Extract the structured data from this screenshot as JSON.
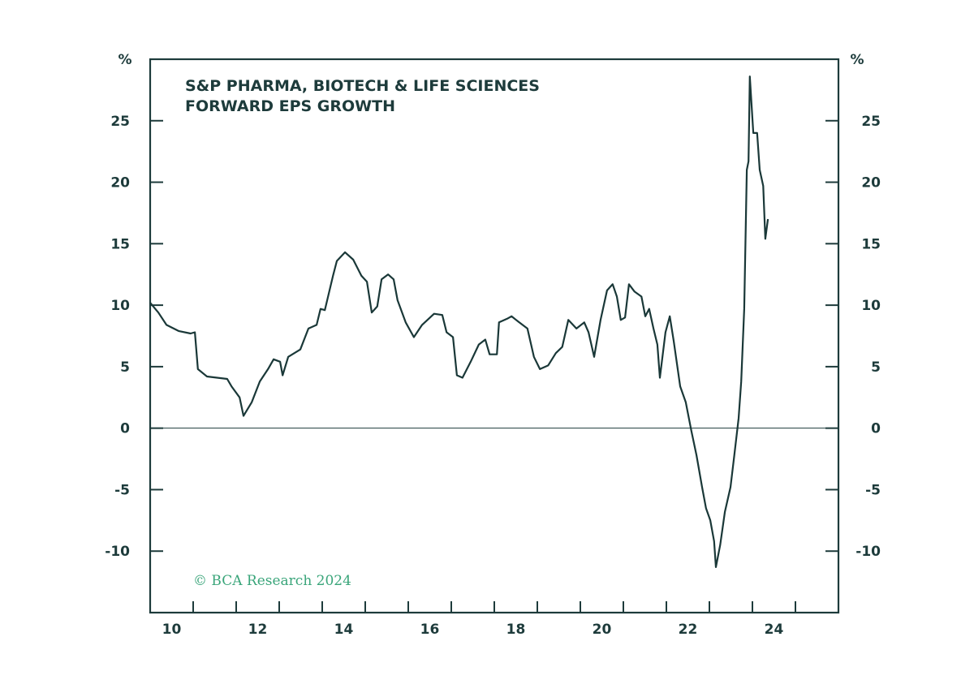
{
  "chart_data": {
    "type": "line",
    "title": [
      "S&P PHARMA, BIOTECH & LIFE SCIENCES",
      "FORWARD EPS GROWTH"
    ],
    "ylabel_left": "%",
    "ylabel_right": "%",
    "xlim": [
      2010,
      2026
    ],
    "ylim": [
      -15,
      30
    ],
    "yticks": [
      -10,
      -5,
      0,
      5,
      10,
      15,
      20,
      25
    ],
    "xtick_labels": [
      "10",
      "12",
      "14",
      "16",
      "18",
      "20",
      "22",
      "24"
    ],
    "xtick_label_years": [
      2010,
      2012,
      2014,
      2016,
      2018,
      2020,
      2022,
      2024
    ],
    "grid": false,
    "zero_line": true,
    "credit": "© BCA Research 2024",
    "colors": {
      "line": "#1a3838",
      "axis": "#1d3b3b",
      "credit": "#3aa57a"
    },
    "series": [
      {
        "points": [
          [
            2010.0,
            10.2
          ],
          [
            2010.19,
            9.4
          ],
          [
            2010.38,
            8.4
          ],
          [
            2010.66,
            7.9
          ],
          [
            2010.94,
            7.7
          ],
          [
            2011.04,
            7.8
          ],
          [
            2011.11,
            4.8
          ],
          [
            2011.32,
            4.2
          ],
          [
            2011.79,
            4.0
          ],
          [
            2011.89,
            3.4
          ],
          [
            2012.08,
            2.5
          ],
          [
            2012.17,
            1.0
          ],
          [
            2012.36,
            2.1
          ],
          [
            2012.55,
            3.8
          ],
          [
            2012.74,
            4.8
          ],
          [
            2012.87,
            5.6
          ],
          [
            2013.02,
            5.4
          ],
          [
            2013.08,
            4.3
          ],
          [
            2013.21,
            5.8
          ],
          [
            2013.49,
            6.4
          ],
          [
            2013.68,
            8.1
          ],
          [
            2013.87,
            8.4
          ],
          [
            2013.96,
            9.7
          ],
          [
            2014.06,
            9.6
          ],
          [
            2014.25,
            12.4
          ],
          [
            2014.34,
            13.6
          ],
          [
            2014.53,
            14.3
          ],
          [
            2014.72,
            13.7
          ],
          [
            2014.91,
            12.4
          ],
          [
            2015.04,
            11.9
          ],
          [
            2015.15,
            9.4
          ],
          [
            2015.28,
            9.9
          ],
          [
            2015.38,
            12.1
          ],
          [
            2015.53,
            12.5
          ],
          [
            2015.66,
            12.1
          ],
          [
            2015.75,
            10.4
          ],
          [
            2015.94,
            8.6
          ],
          [
            2016.13,
            7.4
          ],
          [
            2016.32,
            8.4
          ],
          [
            2016.6,
            9.3
          ],
          [
            2016.79,
            9.2
          ],
          [
            2016.89,
            7.8
          ],
          [
            2017.04,
            7.4
          ],
          [
            2017.13,
            4.3
          ],
          [
            2017.26,
            4.1
          ],
          [
            2017.45,
            5.4
          ],
          [
            2017.64,
            6.8
          ],
          [
            2017.79,
            7.2
          ],
          [
            2017.89,
            6.0
          ],
          [
            2018.06,
            6.0
          ],
          [
            2018.11,
            8.6
          ],
          [
            2018.3,
            8.9
          ],
          [
            2018.4,
            9.1
          ],
          [
            2018.58,
            8.6
          ],
          [
            2018.77,
            8.1
          ],
          [
            2018.92,
            5.8
          ],
          [
            2019.06,
            4.8
          ],
          [
            2019.25,
            5.1
          ],
          [
            2019.43,
            6.1
          ],
          [
            2019.58,
            6.6
          ],
          [
            2019.72,
            8.8
          ],
          [
            2019.91,
            8.1
          ],
          [
            2020.09,
            8.6
          ],
          [
            2020.19,
            7.8
          ],
          [
            2020.32,
            5.8
          ],
          [
            2020.47,
            8.8
          ],
          [
            2020.62,
            11.2
          ],
          [
            2020.75,
            11.7
          ],
          [
            2020.85,
            10.7
          ],
          [
            2020.94,
            8.8
          ],
          [
            2021.04,
            9.0
          ],
          [
            2021.13,
            11.7
          ],
          [
            2021.26,
            11.1
          ],
          [
            2021.42,
            10.7
          ],
          [
            2021.51,
            9.1
          ],
          [
            2021.6,
            9.7
          ],
          [
            2021.7,
            8.1
          ],
          [
            2021.79,
            6.8
          ],
          [
            2021.85,
            4.1
          ],
          [
            2021.98,
            7.8
          ],
          [
            2022.08,
            9.1
          ],
          [
            2022.17,
            7.1
          ],
          [
            2022.32,
            3.4
          ],
          [
            2022.45,
            2.1
          ],
          [
            2022.58,
            -0.2
          ],
          [
            2022.7,
            -2.2
          ],
          [
            2022.83,
            -4.8
          ],
          [
            2022.92,
            -6.5
          ],
          [
            2023.02,
            -7.5
          ],
          [
            2023.11,
            -9.2
          ],
          [
            2023.15,
            -11.3
          ],
          [
            2023.25,
            -9.5
          ],
          [
            2023.36,
            -6.8
          ],
          [
            2023.49,
            -4.8
          ],
          [
            2023.58,
            -2.2
          ],
          [
            2023.68,
            0.8
          ],
          [
            2023.74,
            3.8
          ],
          [
            2023.81,
            9.7
          ],
          [
            2023.87,
            21.0
          ],
          [
            2023.91,
            21.7
          ],
          [
            2023.94,
            28.6
          ],
          [
            2024.02,
            24.0
          ],
          [
            2024.11,
            24.0
          ],
          [
            2024.17,
            21.0
          ],
          [
            2024.25,
            19.7
          ],
          [
            2024.3,
            15.4
          ],
          [
            2024.36,
            17.0
          ]
        ]
      }
    ]
  }
}
